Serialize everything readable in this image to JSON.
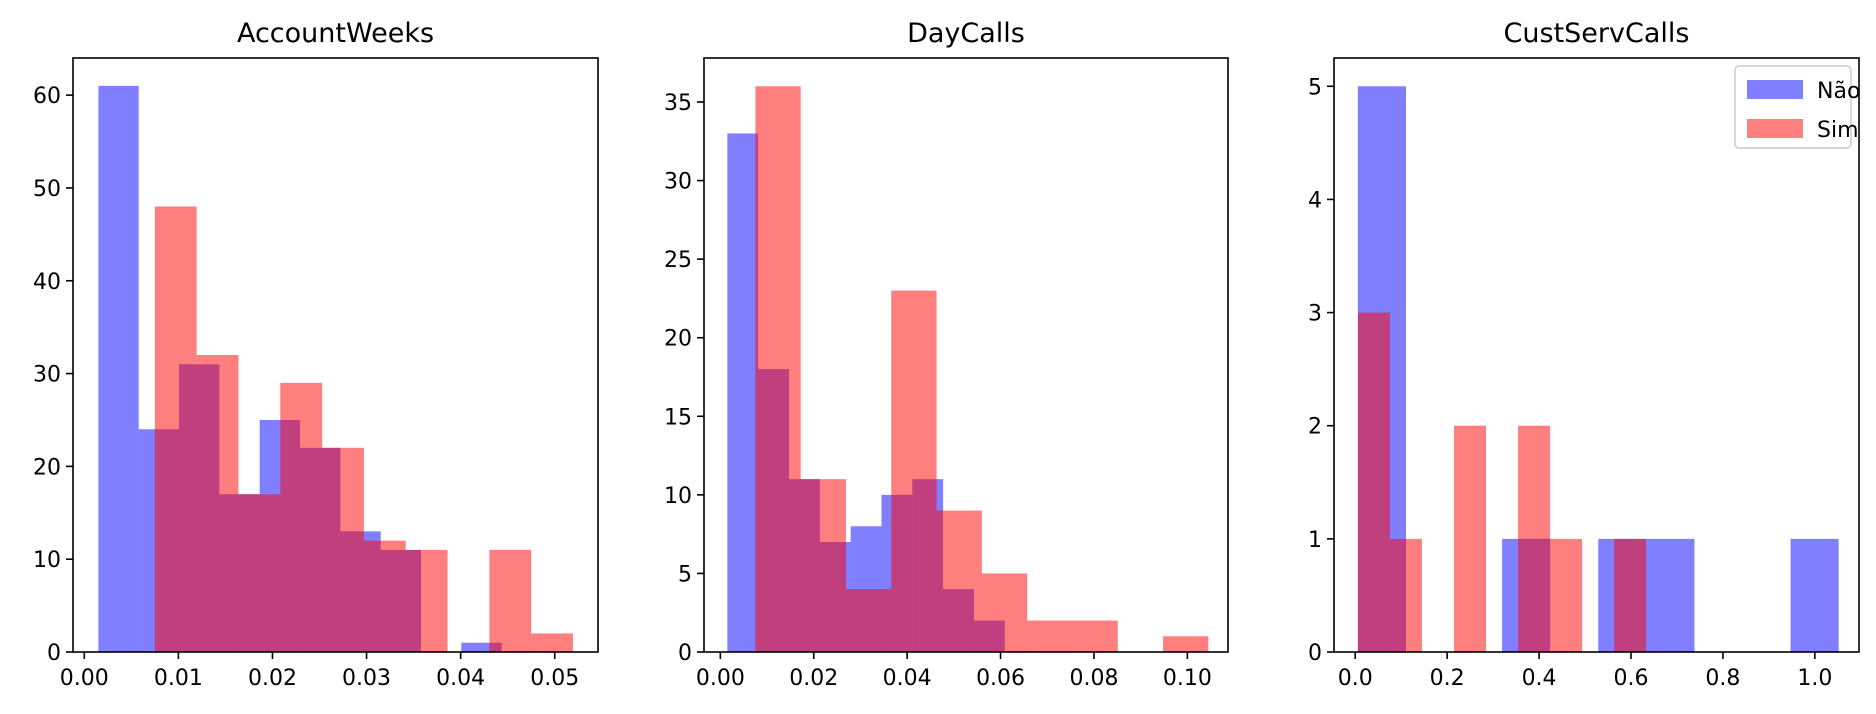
{
  "colors": {
    "series_1": "#0000ff",
    "series_2": "#ff0000",
    "overlap_note": "alpha 0.5"
  },
  "chart_data": [
    {
      "type": "histogram",
      "title": "AccountWeeks",
      "xlim": [
        -0.0012,
        0.0546
      ],
      "ylim": [
        0,
        64
      ],
      "xticks": [
        {
          "v": 0.0,
          "label": "0.00"
        },
        {
          "v": 0.01,
          "label": "0.01"
        },
        {
          "v": 0.02,
          "label": "0.02"
        },
        {
          "v": 0.03,
          "label": "0.03"
        },
        {
          "v": 0.04,
          "label": "0.04"
        },
        {
          "v": 0.05,
          "label": "0.05"
        }
      ],
      "yticks": [
        {
          "v": 0,
          "label": "0"
        },
        {
          "v": 10,
          "label": "10"
        },
        {
          "v": 20,
          "label": "20"
        },
        {
          "v": 30,
          "label": "30"
        },
        {
          "v": 40,
          "label": "40"
        },
        {
          "v": 50,
          "label": "50"
        },
        {
          "v": 60,
          "label": "60"
        }
      ],
      "series": [
        {
          "color": "#0000ff",
          "bin_start": 0.0015,
          "bin_width": 0.004286,
          "counts": [
            61,
            24,
            31,
            17,
            25,
            22,
            13,
            11,
            0,
            1
          ]
        },
        {
          "color": "#ff0000",
          "bin_start": 0.0075,
          "bin_width": 0.004444,
          "counts": [
            48,
            32,
            17,
            29,
            22,
            12,
            11,
            0,
            11,
            2
          ]
        }
      ]
    },
    {
      "type": "histogram",
      "title": "DayCalls",
      "xlim": [
        -0.0035,
        0.1087
      ],
      "ylim": [
        0,
        37.8
      ],
      "xticks": [
        {
          "v": 0.0,
          "label": "0.00"
        },
        {
          "v": 0.02,
          "label": "0.02"
        },
        {
          "v": 0.04,
          "label": "0.04"
        },
        {
          "v": 0.06,
          "label": "0.06"
        },
        {
          "v": 0.08,
          "label": "0.08"
        },
        {
          "v": 0.1,
          "label": "0.10"
        }
      ],
      "yticks": [
        {
          "v": 0,
          "label": "0"
        },
        {
          "v": 5,
          "label": "5"
        },
        {
          "v": 10,
          "label": "10"
        },
        {
          "v": 15,
          "label": "15"
        },
        {
          "v": 20,
          "label": "20"
        },
        {
          "v": 25,
          "label": "25"
        },
        {
          "v": 30,
          "label": "30"
        },
        {
          "v": 35,
          "label": "35"
        }
      ],
      "series": [
        {
          "color": "#0000ff",
          "bin_start": 0.0015,
          "bin_width": 0.0066,
          "counts": [
            33,
            18,
            11,
            7,
            8,
            10,
            11,
            4,
            2,
            0
          ]
        },
        {
          "color": "#ff0000",
          "bin_start": 0.0075,
          "bin_width": 0.0097,
          "counts": [
            36,
            11,
            4,
            23,
            9,
            5,
            2,
            2,
            0,
            1
          ]
        }
      ]
    },
    {
      "type": "histogram",
      "title": "CustServCalls",
      "xlim": [
        -0.0462,
        1.0961
      ],
      "ylim": [
        0,
        5.25
      ],
      "xticks": [
        {
          "v": 0.0,
          "label": "0.0"
        },
        {
          "v": 0.2,
          "label": "0.2"
        },
        {
          "v": 0.4,
          "label": "0.4"
        },
        {
          "v": 0.6,
          "label": "0.6"
        },
        {
          "v": 0.8,
          "label": "0.8"
        },
        {
          "v": 1.0,
          "label": "1.0"
        }
      ],
      "yticks": [
        {
          "v": 0,
          "label": "0"
        },
        {
          "v": 1,
          "label": "1"
        },
        {
          "v": 2,
          "label": "2"
        },
        {
          "v": 3,
          "label": "3"
        },
        {
          "v": 4,
          "label": "4"
        },
        {
          "v": 5,
          "label": "5"
        }
      ],
      "legend": {
        "placement": "upper right",
        "entries": [
          {
            "label": "Não",
            "color": "#0000ff"
          },
          {
            "label": "Sim",
            "color": "#ff0000"
          }
        ]
      },
      "series": [
        {
          "color": "#0000ff",
          "bin_start": 0.0058,
          "bin_width": 0.1046,
          "counts": [
            5,
            0,
            0,
            1,
            0,
            1,
            1,
            0,
            0,
            1
          ]
        },
        {
          "color": "#ff0000",
          "bin_start": 0.0058,
          "bin_width": 0.0697,
          "counts": [
            3,
            1,
            0,
            2,
            0,
            2,
            1,
            0,
            1,
            0
          ]
        }
      ]
    }
  ]
}
